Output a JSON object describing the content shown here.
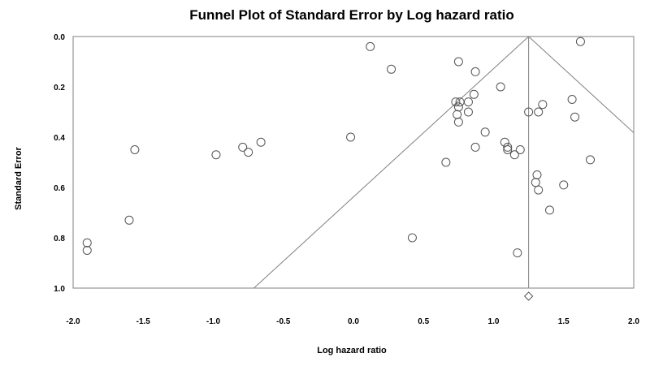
{
  "chart_data": {
    "type": "scatter",
    "title": "Funnel Plot of Standard Error by Log hazard ratio",
    "xlabel": "Log hazard ratio",
    "ylabel": "Standard Error",
    "xlim": [
      -2.0,
      2.0
    ],
    "ylim": [
      0.0,
      1.0
    ],
    "y_inverted": true,
    "x_ticks": [
      "-2.0",
      "-1.5",
      "-1.0",
      "-0.5",
      "0.0",
      "0.5",
      "1.0",
      "1.5",
      "2.0"
    ],
    "y_ticks": [
      "0.0",
      "0.2",
      "0.4",
      "0.6",
      "0.8",
      "1.0"
    ],
    "grid": false,
    "legend": "none",
    "marker": "open-circle",
    "color": "#555555",
    "pooled_estimate": {
      "x": 1.25,
      "marker": "diamond"
    },
    "funnel": {
      "center": 1.25,
      "z": 1.96
    },
    "points": [
      {
        "x": 0.12,
        "y": 0.04
      },
      {
        "x": 0.27,
        "y": 0.13
      },
      {
        "x": 0.75,
        "y": 0.1
      },
      {
        "x": 0.87,
        "y": 0.14
      },
      {
        "x": 1.05,
        "y": 0.2
      },
      {
        "x": 1.62,
        "y": 0.02
      },
      {
        "x": 0.73,
        "y": 0.26
      },
      {
        "x": 0.76,
        "y": 0.26
      },
      {
        "x": 0.82,
        "y": 0.26
      },
      {
        "x": 0.86,
        "y": 0.23
      },
      {
        "x": 0.75,
        "y": 0.28
      },
      {
        "x": 0.74,
        "y": 0.31
      },
      {
        "x": 0.82,
        "y": 0.3
      },
      {
        "x": 0.75,
        "y": 0.34
      },
      {
        "x": 0.94,
        "y": 0.38
      },
      {
        "x": 1.25,
        "y": 0.3
      },
      {
        "x": 1.32,
        "y": 0.3
      },
      {
        "x": 1.35,
        "y": 0.27
      },
      {
        "x": 1.56,
        "y": 0.25
      },
      {
        "x": 1.58,
        "y": 0.32
      },
      {
        "x": 1.08,
        "y": 0.42
      },
      {
        "x": 1.1,
        "y": 0.44
      },
      {
        "x": 1.1,
        "y": 0.45
      },
      {
        "x": 1.15,
        "y": 0.47
      },
      {
        "x": 1.19,
        "y": 0.45
      },
      {
        "x": 0.87,
        "y": 0.44
      },
      {
        "x": 0.66,
        "y": 0.5
      },
      {
        "x": 1.69,
        "y": 0.49
      },
      {
        "x": 1.3,
        "y": 0.58
      },
      {
        "x": 1.31,
        "y": 0.55
      },
      {
        "x": 1.32,
        "y": 0.61
      },
      {
        "x": 1.5,
        "y": 0.59
      },
      {
        "x": 1.4,
        "y": 0.69
      },
      {
        "x": 1.17,
        "y": 0.86
      },
      {
        "x": 0.42,
        "y": 0.8
      },
      {
        "x": -0.02,
        "y": 0.4
      },
      {
        "x": -0.66,
        "y": 0.42
      },
      {
        "x": -0.79,
        "y": 0.44
      },
      {
        "x": -0.75,
        "y": 0.46
      },
      {
        "x": -0.98,
        "y": 0.47
      },
      {
        "x": -1.56,
        "y": 0.45
      },
      {
        "x": -1.6,
        "y": 0.73
      },
      {
        "x": -1.9,
        "y": 0.82
      },
      {
        "x": -1.9,
        "y": 0.85
      }
    ]
  }
}
